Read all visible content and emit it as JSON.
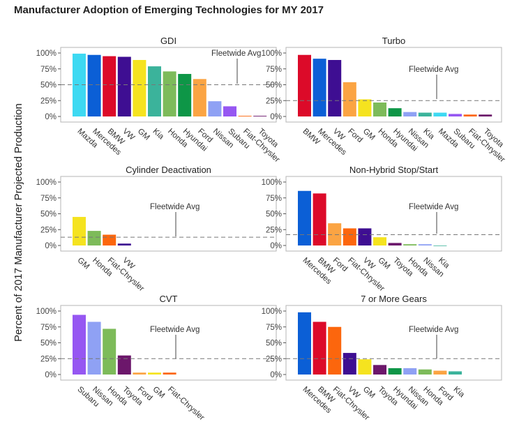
{
  "title": "Manufacturer Adoption of Emerging Technologies for MY 2017",
  "ylabel": "Percent of 2017 Manufacturer Projected Production",
  "y_ticks": [
    "0%",
    "25%",
    "50%",
    "75%",
    "100%"
  ],
  "avg_label": "Fleetwide Avg",
  "colors": {
    "Mazda": "#3dd9f2",
    "Mercedes": "#0b5fd6",
    "BMW": "#dc0a29",
    "VW": "#3e0e92",
    "GM": "#f5e31f",
    "Kia": "#3bb39b",
    "Honda": "#7dbb5a",
    "Hyundai": "#0e9647",
    "Ford": "#fba443",
    "Nissan": "#8fa1f4",
    "Subaru": "#9657f2",
    "Fiat-Chrysler": "#fc660d",
    "Toyota": "#6c176b"
  },
  "chart_data": [
    {
      "type": "bar",
      "title": "GDI",
      "ylim": [
        0,
        100
      ],
      "fleetwide_avg": 50,
      "categories": [
        "Mazda",
        "Mercedes",
        "BMW",
        "VW",
        "GM",
        "Kia",
        "Honda",
        "Hyundai",
        "Ford",
        "Nissan",
        "Subaru",
        "Fiat-Chrysler",
        "Toyota"
      ],
      "values": [
        99,
        97,
        95,
        94,
        89,
        79,
        71,
        67,
        59,
        24,
        16,
        1,
        1
      ]
    },
    {
      "type": "bar",
      "title": "Turbo",
      "ylim": [
        0,
        100
      ],
      "fleetwide_avg": 25,
      "categories": [
        "BMW",
        "Mercedes",
        "VW",
        "Ford",
        "GM",
        "Honda",
        "Hyundai",
        "Nissan",
        "Kia",
        "Mazda",
        "Subaru",
        "Fiat-Chrysler",
        "Toyota"
      ],
      "values": [
        97,
        91,
        89,
        54,
        27,
        22,
        13,
        7,
        6,
        6,
        4,
        3,
        3
      ]
    },
    {
      "type": "bar",
      "title": "Cylinder Deactivation",
      "ylim": [
        0,
        100
      ],
      "fleetwide_avg": 13,
      "categories": [
        "GM",
        "Honda",
        "Fiat-Chrysler",
        "VW"
      ],
      "values": [
        45,
        23,
        17,
        3
      ]
    },
    {
      "type": "bar",
      "title": "Non-Hybrid Stop/Start",
      "ylim": [
        0,
        100
      ],
      "fleetwide_avg": 17,
      "categories": [
        "Mercedes",
        "BMW",
        "Ford",
        "Fiat-Chrysler",
        "VW",
        "GM",
        "Toyota",
        "Honda",
        "Nissan",
        "Kia"
      ],
      "values": [
        86,
        82,
        35,
        27,
        27,
        13,
        4,
        2,
        2,
        0
      ]
    },
    {
      "type": "bar",
      "title": "CVT",
      "ylim": [
        0,
        100
      ],
      "fleetwide_avg": 25,
      "categories": [
        "Subaru",
        "Nissan",
        "Honda",
        "Toyota",
        "Ford",
        "GM",
        "Fiat-Chrysler"
      ],
      "values": [
        94,
        83,
        72,
        30,
        3,
        3,
        3
      ]
    },
    {
      "type": "bar",
      "title": "7 or More Gears",
      "ylim": [
        0,
        100
      ],
      "fleetwide_avg": 25,
      "categories": [
        "Mercedes",
        "BMW",
        "Fiat-Chrysler",
        "VW",
        "GM",
        "Toyota",
        "Hyundai",
        "Nissan",
        "Honda",
        "Ford",
        "Kia"
      ],
      "values": [
        98,
        83,
        75,
        34,
        24,
        15,
        10,
        10,
        8,
        6,
        5
      ]
    }
  ]
}
